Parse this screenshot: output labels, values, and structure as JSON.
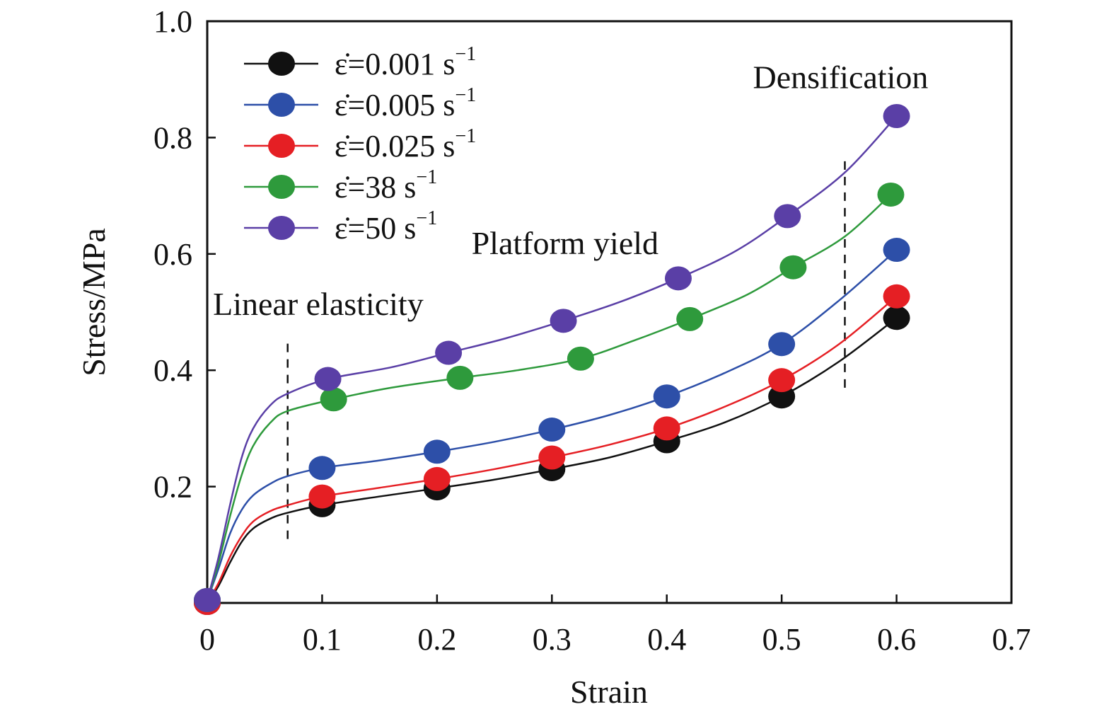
{
  "chart_data": {
    "type": "line",
    "xlabel": "Strain",
    "ylabel": "Stress/MPa",
    "xlim": [
      0,
      0.7
    ],
    "ylim": [
      0,
      1.0
    ],
    "x_ticks": [
      "0",
      "0.1",
      "0.2",
      "0.3",
      "0.4",
      "0.5",
      "0.6",
      "0.7"
    ],
    "y_ticks": [
      "0.2",
      "0.4",
      "0.6",
      "0.8",
      "1.0"
    ],
    "grid": false,
    "legend_position": "top-left",
    "series": [
      {
        "name": "ε̇=0.001 s⁻¹",
        "legend_main": "ε̇=0.001 s",
        "legend_sup": "−1",
        "color": "#111111",
        "points": [
          [
            0,
            0.0
          ],
          [
            0.1,
            0.168
          ],
          [
            0.2,
            0.197
          ],
          [
            0.3,
            0.23
          ],
          [
            0.4,
            0.278
          ],
          [
            0.5,
            0.355
          ],
          [
            0.6,
            0.49
          ]
        ],
        "curve": [
          [
            0,
            0.0
          ],
          [
            0.01,
            0.03
          ],
          [
            0.02,
            0.07
          ],
          [
            0.03,
            0.105
          ],
          [
            0.04,
            0.128
          ],
          [
            0.055,
            0.145
          ],
          [
            0.07,
            0.155
          ],
          [
            0.1,
            0.168
          ],
          [
            0.15,
            0.183
          ],
          [
            0.2,
            0.197
          ],
          [
            0.25,
            0.212
          ],
          [
            0.3,
            0.23
          ],
          [
            0.35,
            0.25
          ],
          [
            0.4,
            0.278
          ],
          [
            0.45,
            0.31
          ],
          [
            0.5,
            0.355
          ],
          [
            0.55,
            0.415
          ],
          [
            0.6,
            0.49
          ]
        ]
      },
      {
        "name": "ε̇=0.005 s⁻¹",
        "legend_main": "ε̇=0.005 s",
        "legend_sup": "−1",
        "color": "#2d4fa8",
        "points": [
          [
            0,
            0.005
          ],
          [
            0.1,
            0.232
          ],
          [
            0.2,
            0.26
          ],
          [
            0.3,
            0.298
          ],
          [
            0.4,
            0.355
          ],
          [
            0.5,
            0.445
          ],
          [
            0.6,
            0.607
          ]
        ],
        "curve": [
          [
            0,
            0.005
          ],
          [
            0.01,
            0.06
          ],
          [
            0.02,
            0.12
          ],
          [
            0.03,
            0.16
          ],
          [
            0.04,
            0.185
          ],
          [
            0.055,
            0.205
          ],
          [
            0.07,
            0.218
          ],
          [
            0.1,
            0.232
          ],
          [
            0.15,
            0.245
          ],
          [
            0.2,
            0.26
          ],
          [
            0.25,
            0.277
          ],
          [
            0.3,
            0.298
          ],
          [
            0.35,
            0.323
          ],
          [
            0.4,
            0.355
          ],
          [
            0.45,
            0.395
          ],
          [
            0.5,
            0.445
          ],
          [
            0.55,
            0.52
          ],
          [
            0.6,
            0.607
          ]
        ]
      },
      {
        "name": "ε̇=0.025 s⁻¹",
        "legend_main": "ε̇=0.025 s",
        "legend_sup": "−1",
        "color": "#e51f24",
        "points": [
          [
            0,
            0.0
          ],
          [
            0.1,
            0.183
          ],
          [
            0.2,
            0.213
          ],
          [
            0.3,
            0.25
          ],
          [
            0.4,
            0.3
          ],
          [
            0.5,
            0.383
          ],
          [
            0.6,
            0.527
          ]
        ],
        "curve": [
          [
            0,
            0.0
          ],
          [
            0.01,
            0.035
          ],
          [
            0.02,
            0.08
          ],
          [
            0.03,
            0.115
          ],
          [
            0.04,
            0.14
          ],
          [
            0.055,
            0.158
          ],
          [
            0.07,
            0.168
          ],
          [
            0.1,
            0.183
          ],
          [
            0.15,
            0.198
          ],
          [
            0.2,
            0.213
          ],
          [
            0.25,
            0.23
          ],
          [
            0.3,
            0.25
          ],
          [
            0.35,
            0.272
          ],
          [
            0.4,
            0.3
          ],
          [
            0.45,
            0.337
          ],
          [
            0.5,
            0.383
          ],
          [
            0.55,
            0.445
          ],
          [
            0.6,
            0.527
          ]
        ]
      },
      {
        "name": "ε̇=38 s⁻¹",
        "legend_main": "ε̇=38 s",
        "legend_sup": "−1",
        "color": "#2e9a3c",
        "points": [
          [
            0,
            0.005
          ],
          [
            0.11,
            0.35
          ],
          [
            0.22,
            0.387
          ],
          [
            0.325,
            0.42
          ],
          [
            0.42,
            0.488
          ],
          [
            0.51,
            0.577
          ],
          [
            0.595,
            0.702
          ]
        ],
        "curve": [
          [
            0,
            0.005
          ],
          [
            0.01,
            0.07
          ],
          [
            0.02,
            0.15
          ],
          [
            0.03,
            0.22
          ],
          [
            0.04,
            0.27
          ],
          [
            0.055,
            0.31
          ],
          [
            0.07,
            0.33
          ],
          [
            0.11,
            0.35
          ],
          [
            0.16,
            0.37
          ],
          [
            0.22,
            0.387
          ],
          [
            0.27,
            0.4
          ],
          [
            0.325,
            0.42
          ],
          [
            0.37,
            0.45
          ],
          [
            0.42,
            0.488
          ],
          [
            0.47,
            0.53
          ],
          [
            0.51,
            0.577
          ],
          [
            0.555,
            0.63
          ],
          [
            0.595,
            0.702
          ]
        ]
      },
      {
        "name": "ε̇=50 s⁻¹",
        "legend_main": "ε̇=50 s",
        "legend_sup": "−1",
        "color": "#5a3fa6",
        "points": [
          [
            0,
            0.005
          ],
          [
            0.105,
            0.385
          ],
          [
            0.21,
            0.43
          ],
          [
            0.31,
            0.485
          ],
          [
            0.41,
            0.558
          ],
          [
            0.505,
            0.665
          ],
          [
            0.6,
            0.837
          ]
        ],
        "curve": [
          [
            0,
            0.005
          ],
          [
            0.01,
            0.08
          ],
          [
            0.02,
            0.17
          ],
          [
            0.03,
            0.25
          ],
          [
            0.04,
            0.3
          ],
          [
            0.055,
            0.34
          ],
          [
            0.07,
            0.36
          ],
          [
            0.105,
            0.385
          ],
          [
            0.16,
            0.405
          ],
          [
            0.21,
            0.43
          ],
          [
            0.26,
            0.455
          ],
          [
            0.31,
            0.485
          ],
          [
            0.36,
            0.518
          ],
          [
            0.41,
            0.558
          ],
          [
            0.46,
            0.605
          ],
          [
            0.505,
            0.665
          ],
          [
            0.555,
            0.74
          ],
          [
            0.6,
            0.837
          ]
        ]
      }
    ],
    "annotations": [
      {
        "text": "Linear elasticity",
        "x": 0.005,
        "y": 0.495
      },
      {
        "text": "Platform yield",
        "x": 0.23,
        "y": 0.6
      },
      {
        "text": "Densification",
        "x": 0.475,
        "y": 0.885
      }
    ],
    "reference_lines": [
      {
        "x": 0.07,
        "y_from": 0.11,
        "y_to": 0.455
      },
      {
        "x": 0.555,
        "y_from": 0.37,
        "y_to": 0.77
      }
    ]
  }
}
